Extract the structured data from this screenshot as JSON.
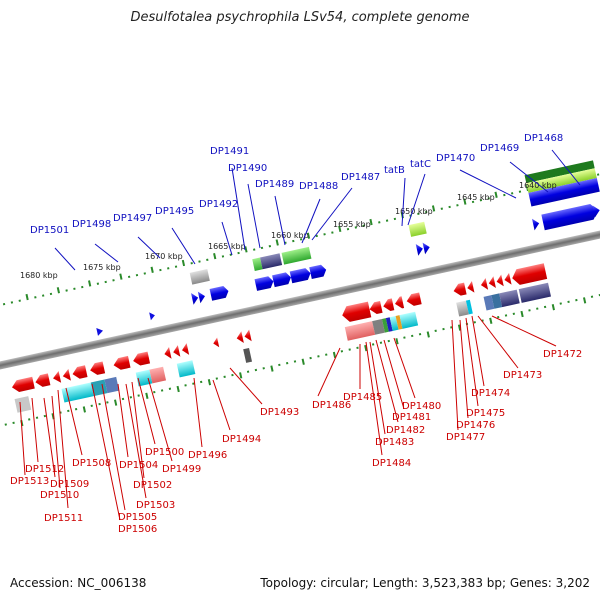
{
  "title": "Desulfotalea psychrophila LSv54, complete genome",
  "footer": {
    "accession": "Accession: NC_006138",
    "topology": "Topology: circular; Length: 3,523,383 bp; Genes: 3,202"
  },
  "colors": {
    "top_labels": "#1010c0",
    "bottom_labels": "#cc0000",
    "backbone": "#808080",
    "ticks": "#2a8a2a"
  },
  "scale_labels": [
    "1680 kbp",
    "1675 kbp",
    "1670 kbp",
    "1665 kbp",
    "1660 kbp",
    "1655 kbp",
    "1650 kbp",
    "1645 kbp",
    "1640 kbp"
  ],
  "top_genes": [
    "DP1501",
    "DP1498",
    "DP1497",
    "DP1495",
    "DP1492",
    "DP1491",
    "DP1490",
    "DP1489",
    "DP1488",
    "DP1487",
    "tatB",
    "tatC",
    "DP1470",
    "DP1469",
    "DP1468"
  ],
  "bottom_genes": [
    "DP1512",
    "DP1513",
    "DP1509",
    "DP1510",
    "DP1511",
    "DP1508",
    "DP1504",
    "DP1505",
    "DP1506",
    "DP1503",
    "DP1502",
    "DP1500",
    "DP1499",
    "DP1496",
    "DP1494",
    "DP1493",
    "DP1486",
    "DP1485",
    "DP1483",
    "DP1484",
    "DP1482",
    "DP1481",
    "DP1480",
    "DP1477",
    "DP1476",
    "DP1475",
    "DP1474",
    "DP1473",
    "DP1472"
  ]
}
